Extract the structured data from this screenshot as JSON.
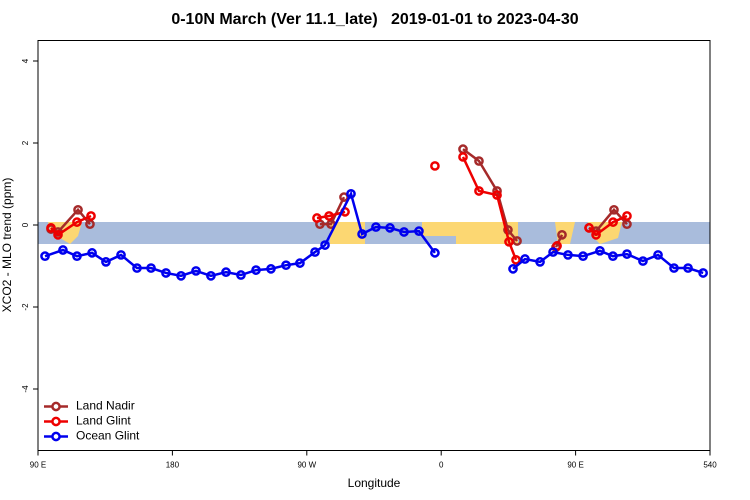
{
  "chart_data": {
    "type": "line",
    "title": "0-10N March (Ver 11.1_late)   2019-01-01 to 2023-04-30",
    "xlabel": "Longitude",
    "ylabel": "XCO2 - MLO trend (ppm)",
    "xlim": [
      90,
      540
    ],
    "xticks": [
      {
        "value": 90,
        "label": "90 E"
      },
      180,
      {
        "value": 270,
        "label": "90 W"
      },
      {
        "value": 360,
        "label": "0"
      },
      {
        "value": 450,
        "label": "90 E"
      },
      540
    ],
    "ylim": [
      -5.5,
      4.5
    ],
    "yticks": [
      -4,
      -2,
      0,
      2,
      4
    ],
    "legend": "bottomleft",
    "series": [
      {
        "name": "Land Nadir",
        "color": "#a52a2a",
        "x": [
          98.7,
          103.4,
          116.8,
          124.8,
          null,
          278.8,
          286.2,
          294.9,
          null,
          374.6,
          385.3,
          397.4,
          404.7,
          410.8,
          null,
          436.9,
          440.9,
          null,
          459.0,
          463.7,
          475.7,
          484.4
        ],
        "values": [
          -0.1,
          -0.17,
          0.37,
          0.02,
          null,
          0.02,
          0.02,
          0.68,
          null,
          1.85,
          1.56,
          0.83,
          -0.12,
          -0.39,
          null,
          -0.54,
          -0.24,
          null,
          -0.07,
          -0.15,
          0.37,
          0.02
        ]
      },
      {
        "name": "Land Glint",
        "color": "#ee0000",
        "x": [
          98.7,
          103.4,
          116.1,
          125.5,
          null,
          276.8,
          284.9,
          295.6,
          null,
          355.8,
          null,
          374.6,
          385.3,
          397.4,
          405.4,
          410.1,
          null,
          437.6,
          null,
          459.0,
          463.7,
          475.1,
          484.4
        ],
        "values": [
          -0.07,
          -0.24,
          0.07,
          0.22,
          null,
          0.17,
          0.22,
          0.32,
          null,
          1.44,
          null,
          1.66,
          0.83,
          0.73,
          -0.41,
          -0.85,
          null,
          -0.51,
          null,
          -0.07,
          -0.24,
          0.07,
          0.22
        ]
      },
      {
        "name": "Ocean Glint",
        "color": "#0000ee",
        "x": [
          94.7,
          106.7,
          116.1,
          126.2,
          135.5,
          145.6,
          156.3,
          165.7,
          175.7,
          185.8,
          195.8,
          205.8,
          215.9,
          225.9,
          236.0,
          246.0,
          256.1,
          265.4,
          275.5,
          282.2,
          299.6,
          307.0,
          316.3,
          325.7,
          335.1,
          345.1,
          355.8,
          null,
          408.1,
          416.1,
          426.2,
          434.9,
          444.9,
          455.0,
          466.3,
          475.0,
          484.4,
          495.1,
          505.2,
          515.9,
          525.3,
          535.4
        ],
        "values": [
          -0.76,
          -0.61,
          -0.76,
          -0.68,
          -0.9,
          -0.73,
          -1.05,
          -1.05,
          -1.17,
          -1.24,
          -1.12,
          -1.24,
          -1.15,
          -1.22,
          -1.1,
          -1.07,
          -0.98,
          -0.93,
          -0.66,
          -0.49,
          0.76,
          -0.22,
          -0.05,
          -0.07,
          -0.17,
          -0.15,
          -0.68,
          null,
          -1.07,
          -0.83,
          -0.9,
          -0.66,
          -0.73,
          -0.76,
          -0.63,
          -0.76,
          -0.71,
          -0.88,
          -0.73,
          -1.05,
          -1.05,
          -1.17
        ]
      }
    ]
  }
}
